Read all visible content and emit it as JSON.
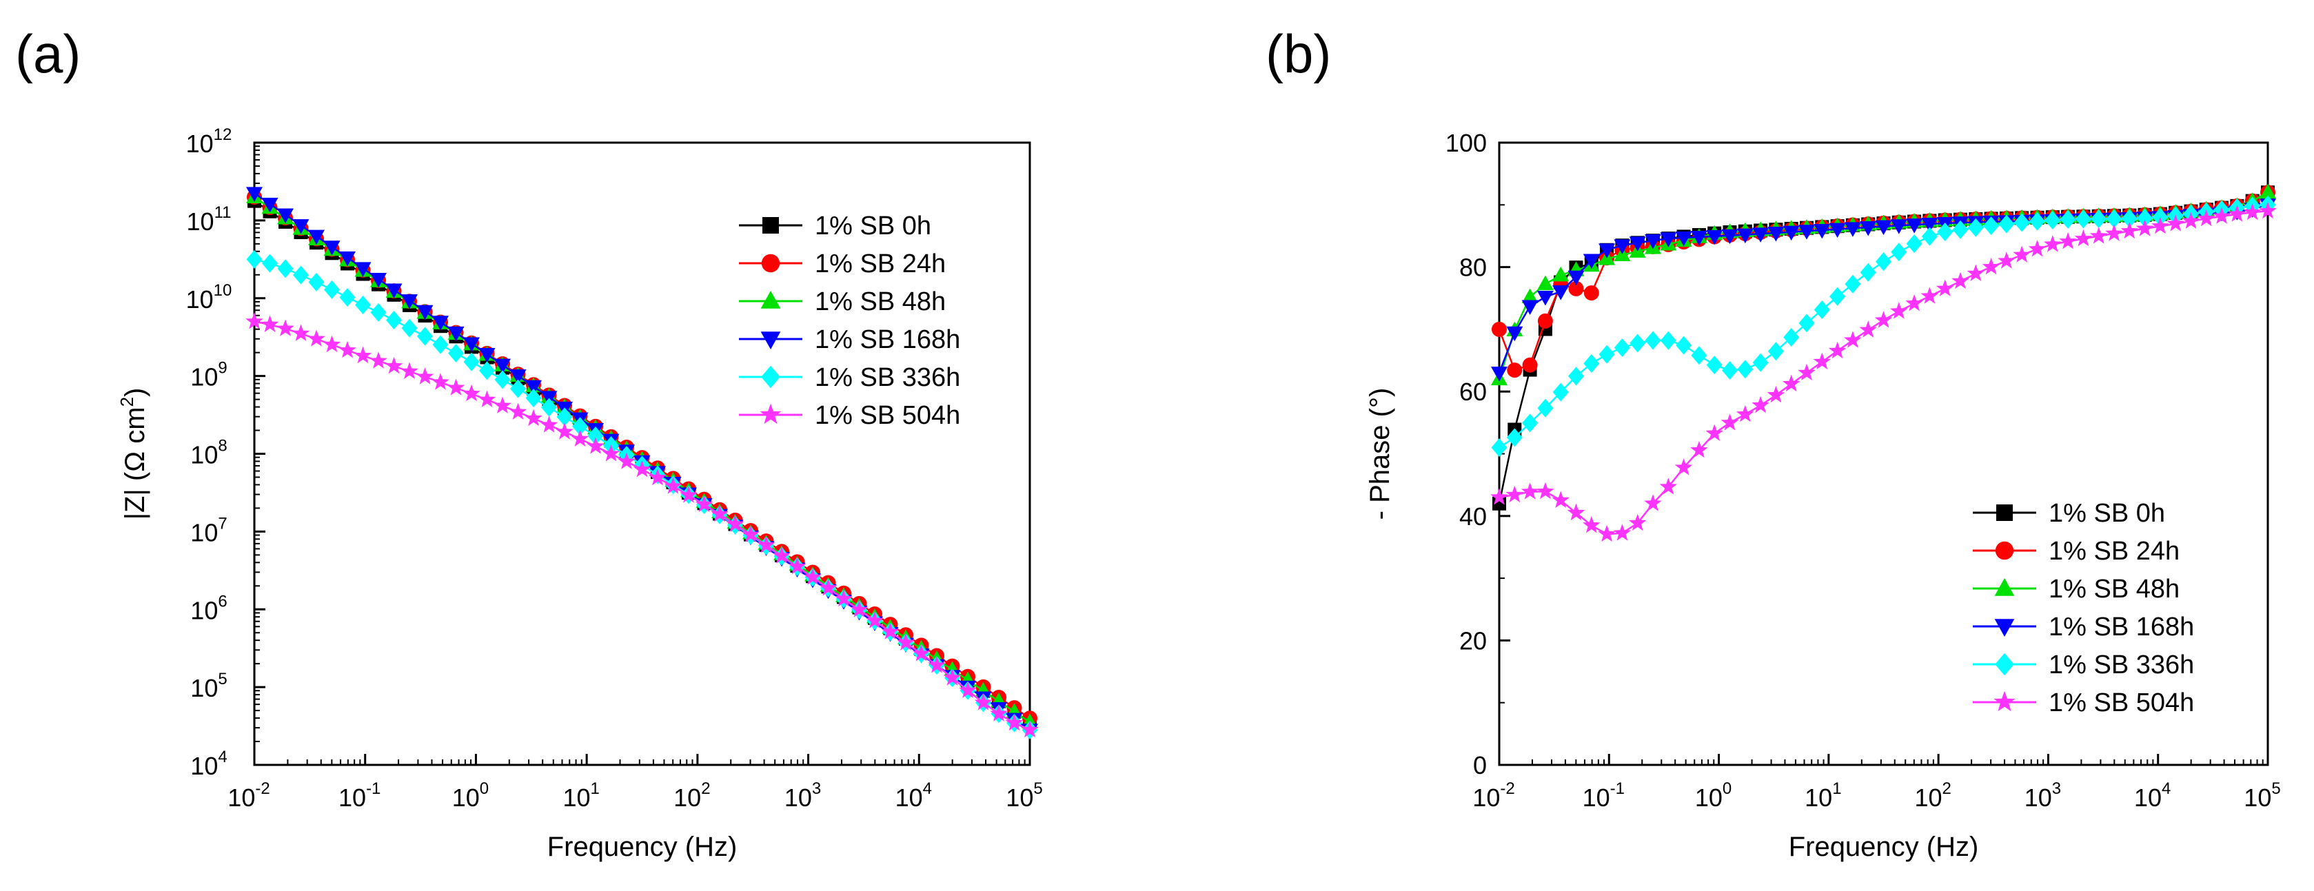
{
  "figure": {
    "panel_a_label": "(a)",
    "panel_b_label": "(b)"
  },
  "colors": {
    "1% SB 0h": "#000000",
    "1% SB 24h": "#ff0000",
    "1% SB 48h": "#00e000",
    "1% SB 168h": "#0000ff",
    "1% SB 336h": "#00ffff",
    "1% SB 504h": "#ff33ff"
  },
  "markers": {
    "1% SB 0h": "square",
    "1% SB 24h": "circle",
    "1% SB 48h": "triangle-up",
    "1% SB 168h": "triangle-down",
    "1% SB 336h": "diamond",
    "1% SB 504h": "star"
  },
  "chart_data": [
    {
      "id": "a",
      "type": "line",
      "title": "",
      "xlabel": "Frequency (Hz)",
      "ylabel_main": "|Z| (Ω cm",
      "ylabel_sup": "2",
      "ylabel_close": ")",
      "xscale": "log",
      "yscale": "log",
      "xlim_exp": [
        -2,
        5
      ],
      "ylim_exp": [
        4,
        12
      ],
      "x_tick_base": "10",
      "x_tick_exps": [
        "-2",
        "-1",
        "0",
        "1",
        "2",
        "3",
        "4",
        "5"
      ],
      "y_tick_base": "10",
      "y_tick_exps": [
        "4",
        "5",
        "6",
        "7",
        "8",
        "9",
        "10",
        "11",
        "12"
      ],
      "legend_position": "top-right",
      "series": [
        {
          "name": "1% SB 0h",
          "log_freq": [
            -2,
            5
          ],
          "log_z": [
            11.25,
            4.55
          ],
          "shape": "linear"
        },
        {
          "name": "1% SB 24h",
          "log_freq": [
            -2,
            5
          ],
          "log_z": [
            11.3,
            4.6
          ],
          "shape": "linear"
        },
        {
          "name": "1% SB 48h",
          "log_freq": [
            -2,
            5
          ],
          "log_z": [
            11.3,
            4.55
          ],
          "shape": "linear"
        },
        {
          "name": "1% SB 168h",
          "log_freq": [
            -2,
            5
          ],
          "log_z": [
            11.35,
            4.45
          ],
          "shape": "linear"
        },
        {
          "name": "1% SB 336h",
          "log_freq": [
            -2,
            -1,
            0,
            1,
            2,
            3,
            4,
            5
          ],
          "log_z": [
            10.5,
            9.9,
            9.15,
            8.3,
            7.4,
            6.45,
            5.45,
            4.45
          ],
          "shape": "curve"
        },
        {
          "name": "1% SB 504h",
          "log_freq": [
            -2,
            -1,
            0,
            1,
            2,
            3,
            4,
            5
          ],
          "log_z": [
            9.7,
            9.25,
            8.75,
            8.15,
            7.4,
            6.45,
            5.45,
            4.45
          ],
          "shape": "curve"
        }
      ]
    },
    {
      "id": "b",
      "type": "line",
      "title": "",
      "xlabel": "Frequency (Hz)",
      "ylabel": "- Phase (°)",
      "xscale": "log",
      "yscale": "linear",
      "xlim_exp": [
        -2,
        5
      ],
      "ylim": [
        0,
        100
      ],
      "x_tick_base": "10",
      "x_tick_exps": [
        "-2",
        "-1",
        "0",
        "1",
        "2",
        "3",
        "4",
        "5"
      ],
      "y_ticks": [
        "0",
        "20",
        "40",
        "60",
        "80",
        "100"
      ],
      "legend_position": "bottom-right",
      "series": [
        {
          "name": "1% SB 0h",
          "log_freq": [
            -2,
            -1.8,
            -1.6,
            -1.4,
            -1.2,
            -1,
            -0.5,
            0,
            1,
            2,
            3,
            4,
            4.8,
            5
          ],
          "phase": [
            42,
            59,
            69,
            79,
            80,
            83,
            84.5,
            85.5,
            86.5,
            87.5,
            88,
            88.5,
            90,
            92
          ],
          "shape": "curve"
        },
        {
          "name": "1% SB 24h",
          "log_freq": [
            -2,
            -1.8,
            -1.6,
            -1.4,
            -1.2,
            -1,
            -0.5,
            0,
            1,
            2,
            3,
            4,
            4.8,
            5
          ],
          "phase": [
            70,
            62,
            70.5,
            78,
            75,
            82,
            83.5,
            85,
            86.5,
            87.5,
            88,
            88.5,
            90,
            92
          ],
          "shape": "curve"
        },
        {
          "name": "1% SB 48h",
          "log_freq": [
            -2,
            -1.8,
            -1.6,
            -1.4,
            -1.2,
            -1,
            -0.5,
            0,
            1,
            2,
            3,
            4,
            4.8,
            5
          ],
          "phase": [
            62,
            73,
            77,
            79,
            80,
            81.5,
            83.5,
            85.5,
            86.5,
            87.5,
            88,
            88.5,
            90,
            92
          ],
          "shape": "curve"
        },
        {
          "name": "1% SB 168h",
          "log_freq": [
            -2,
            -1.8,
            -1.6,
            -1.4,
            -1.2,
            -1,
            -0.5,
            0,
            1,
            2,
            3,
            4,
            4.8,
            5
          ],
          "phase": [
            63,
            72,
            75,
            76.5,
            80.5,
            83,
            84.5,
            85,
            86,
            87,
            87.5,
            88,
            89,
            90
          ],
          "shape": "curve"
        },
        {
          "name": "1% SB 336h",
          "log_freq": [
            -2,
            -1.6,
            -1.2,
            -0.8,
            -0.4,
            0,
            0.2,
            0.4,
            0.8,
            1.2,
            1.6,
            2,
            3,
            4,
            5
          ],
          "phase": [
            51,
            57,
            64,
            67.5,
            68,
            64,
            63.5,
            65,
            71,
            77,
            82,
            85.5,
            87.5,
            88,
            90
          ],
          "shape": "curve"
        },
        {
          "name": "1% SB 504h",
          "log_freq": [
            -2,
            -1.6,
            -1.4,
            -1.2,
            -1,
            -0.8,
            -0.6,
            -0.2,
            0,
            0.4,
            0.8,
            1.2,
            1.6,
            2,
            2.4,
            3,
            4,
            5
          ],
          "phase": [
            43,
            44,
            42,
            39,
            37,
            38,
            42,
            50,
            54,
            58,
            63,
            68,
            72.5,
            76,
            79.5,
            83.5,
            86.5,
            89
          ],
          "shape": "curve"
        }
      ]
    }
  ]
}
